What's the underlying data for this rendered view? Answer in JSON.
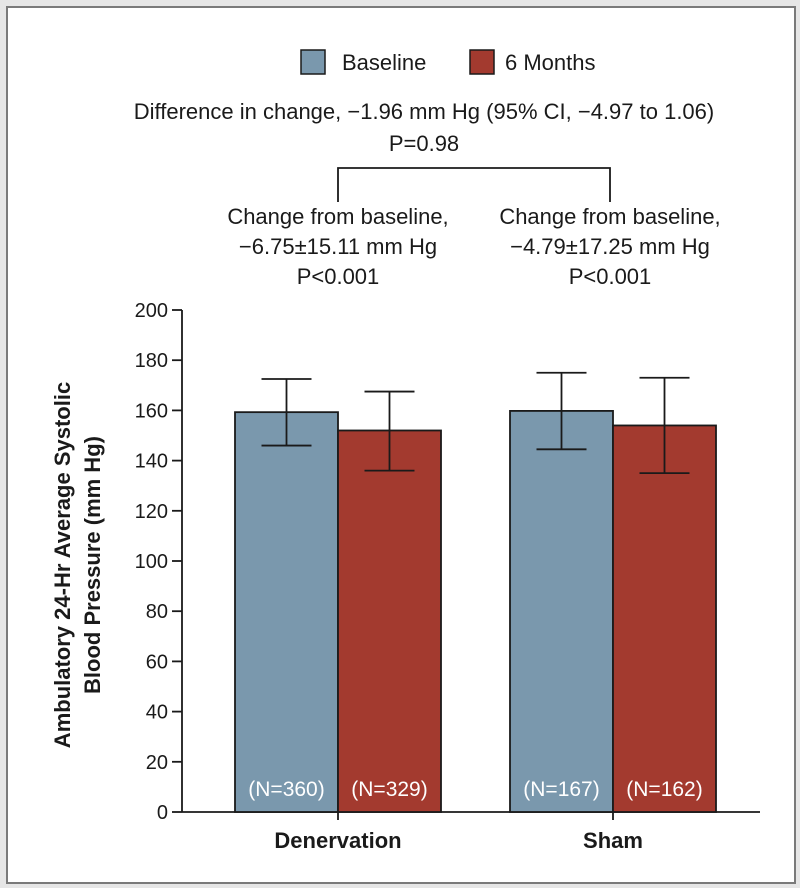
{
  "chart_data": {
    "type": "bar",
    "title": "",
    "ylabel": [
      "Ambulatory 24-Hr Average Systolic",
      "Blood Pressure (mm Hg)"
    ],
    "xlabel": "",
    "ylim": [
      0,
      200
    ],
    "yticks": [
      "0",
      "20",
      "40",
      "60",
      "80",
      "100",
      "120",
      "140",
      "160",
      "180",
      "200"
    ],
    "categories": [
      "Denervation",
      "Sham"
    ],
    "series": [
      {
        "name": "Baseline",
        "color": "#7a98ad",
        "values": [
          159.3,
          159.8
        ],
        "error": [
          [
            146,
            172.5
          ],
          [
            144.5,
            175
          ]
        ],
        "n_labels": [
          "(N=360)",
          "(N=167)"
        ]
      },
      {
        "name": "6 Months",
        "color": "#a33a2f",
        "values": [
          152,
          154
        ],
        "error": [
          [
            136,
            167.5
          ],
          [
            135,
            173
          ]
        ],
        "n_labels": [
          "(N=329)",
          "(N=162)"
        ]
      }
    ],
    "legend": {
      "position": "top",
      "items": [
        "Baseline",
        "6 Months"
      ]
    },
    "annotations": {
      "difference": [
        "Difference in change, −1.96 mm Hg (95% CI, −4.97 to 1.06)",
        "P=0.98"
      ],
      "denervation_change": [
        "Change from baseline,",
        "−6.75±15.11 mm Hg",
        "P<0.001"
      ],
      "sham_change": [
        "Change from baseline,",
        "−4.79±17.25 mm Hg",
        "P<0.001"
      ]
    }
  }
}
